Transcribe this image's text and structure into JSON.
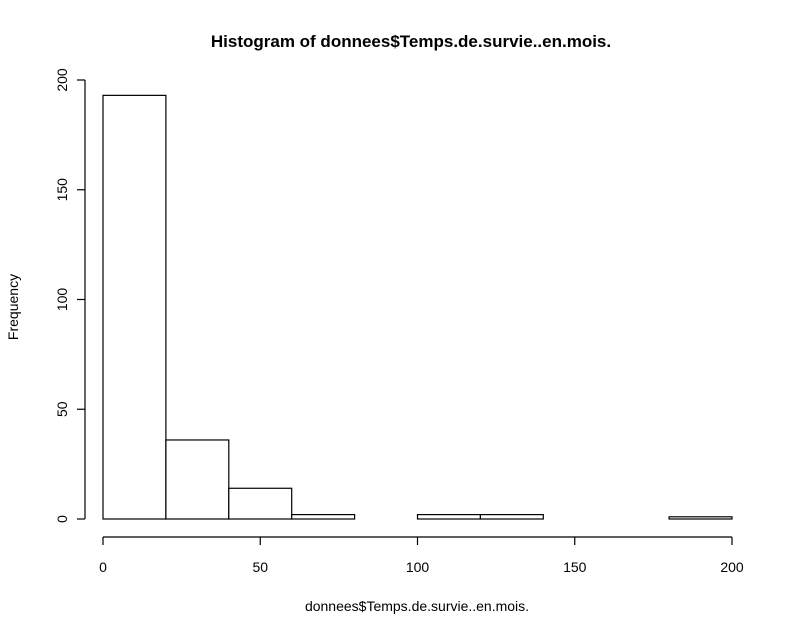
{
  "chart_data": {
    "type": "bar",
    "title": "Histogram of donnees$Temps.de.survie..en.mois.",
    "xlabel": "donnees$Temps.de.survie..en.mois.",
    "ylabel": "Frequency",
    "bins": [
      {
        "from": 0,
        "to": 20,
        "count": 193
      },
      {
        "from": 20,
        "to": 40,
        "count": 36
      },
      {
        "from": 40,
        "to": 60,
        "count": 14
      },
      {
        "from": 60,
        "to": 80,
        "count": 2
      },
      {
        "from": 80,
        "to": 100,
        "count": 0
      },
      {
        "from": 100,
        "to": 120,
        "count": 2
      },
      {
        "from": 120,
        "to": 140,
        "count": 2
      },
      {
        "from": 140,
        "to": 160,
        "count": 0
      },
      {
        "from": 160,
        "to": 180,
        "count": 0
      },
      {
        "from": 180,
        "to": 200,
        "count": 1
      }
    ],
    "xlim": [
      0,
      200
    ],
    "ylim": [
      0,
      200
    ],
    "x_ticks": [
      "0",
      "50",
      "100",
      "150",
      "200"
    ],
    "y_ticks": [
      "0",
      "50",
      "100",
      "150",
      "200"
    ],
    "grid": false,
    "bar_fill": "#ffffff",
    "bar_stroke": "#000000"
  }
}
